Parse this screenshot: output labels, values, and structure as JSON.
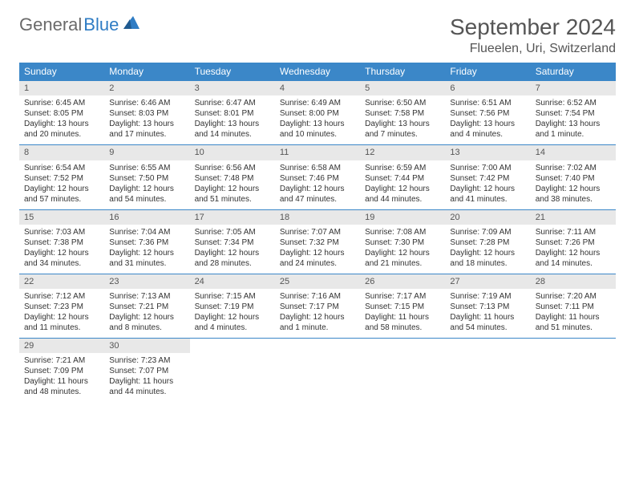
{
  "brand": {
    "part1": "General",
    "part2": "Blue"
  },
  "title": "September 2024",
  "location": "Flueelen, Uri, Switzerland",
  "colors": {
    "header_bg": "#3b87c8",
    "header_text": "#ffffff",
    "daynum_bg": "#e8e8e8",
    "border": "#3b87c8",
    "logo_gray": "#6a6a6a",
    "logo_blue": "#2f7cc4"
  },
  "day_names": [
    "Sunday",
    "Monday",
    "Tuesday",
    "Wednesday",
    "Thursday",
    "Friday",
    "Saturday"
  ],
  "weeks": [
    [
      {
        "n": "1",
        "sunrise": "Sunrise: 6:45 AM",
        "sunset": "Sunset: 8:05 PM",
        "daylight": "Daylight: 13 hours and 20 minutes."
      },
      {
        "n": "2",
        "sunrise": "Sunrise: 6:46 AM",
        "sunset": "Sunset: 8:03 PM",
        "daylight": "Daylight: 13 hours and 17 minutes."
      },
      {
        "n": "3",
        "sunrise": "Sunrise: 6:47 AM",
        "sunset": "Sunset: 8:01 PM",
        "daylight": "Daylight: 13 hours and 14 minutes."
      },
      {
        "n": "4",
        "sunrise": "Sunrise: 6:49 AM",
        "sunset": "Sunset: 8:00 PM",
        "daylight": "Daylight: 13 hours and 10 minutes."
      },
      {
        "n": "5",
        "sunrise": "Sunrise: 6:50 AM",
        "sunset": "Sunset: 7:58 PM",
        "daylight": "Daylight: 13 hours and 7 minutes."
      },
      {
        "n": "6",
        "sunrise": "Sunrise: 6:51 AM",
        "sunset": "Sunset: 7:56 PM",
        "daylight": "Daylight: 13 hours and 4 minutes."
      },
      {
        "n": "7",
        "sunrise": "Sunrise: 6:52 AM",
        "sunset": "Sunset: 7:54 PM",
        "daylight": "Daylight: 13 hours and 1 minute."
      }
    ],
    [
      {
        "n": "8",
        "sunrise": "Sunrise: 6:54 AM",
        "sunset": "Sunset: 7:52 PM",
        "daylight": "Daylight: 12 hours and 57 minutes."
      },
      {
        "n": "9",
        "sunrise": "Sunrise: 6:55 AM",
        "sunset": "Sunset: 7:50 PM",
        "daylight": "Daylight: 12 hours and 54 minutes."
      },
      {
        "n": "10",
        "sunrise": "Sunrise: 6:56 AM",
        "sunset": "Sunset: 7:48 PM",
        "daylight": "Daylight: 12 hours and 51 minutes."
      },
      {
        "n": "11",
        "sunrise": "Sunrise: 6:58 AM",
        "sunset": "Sunset: 7:46 PM",
        "daylight": "Daylight: 12 hours and 47 minutes."
      },
      {
        "n": "12",
        "sunrise": "Sunrise: 6:59 AM",
        "sunset": "Sunset: 7:44 PM",
        "daylight": "Daylight: 12 hours and 44 minutes."
      },
      {
        "n": "13",
        "sunrise": "Sunrise: 7:00 AM",
        "sunset": "Sunset: 7:42 PM",
        "daylight": "Daylight: 12 hours and 41 minutes."
      },
      {
        "n": "14",
        "sunrise": "Sunrise: 7:02 AM",
        "sunset": "Sunset: 7:40 PM",
        "daylight": "Daylight: 12 hours and 38 minutes."
      }
    ],
    [
      {
        "n": "15",
        "sunrise": "Sunrise: 7:03 AM",
        "sunset": "Sunset: 7:38 PM",
        "daylight": "Daylight: 12 hours and 34 minutes."
      },
      {
        "n": "16",
        "sunrise": "Sunrise: 7:04 AM",
        "sunset": "Sunset: 7:36 PM",
        "daylight": "Daylight: 12 hours and 31 minutes."
      },
      {
        "n": "17",
        "sunrise": "Sunrise: 7:05 AM",
        "sunset": "Sunset: 7:34 PM",
        "daylight": "Daylight: 12 hours and 28 minutes."
      },
      {
        "n": "18",
        "sunrise": "Sunrise: 7:07 AM",
        "sunset": "Sunset: 7:32 PM",
        "daylight": "Daylight: 12 hours and 24 minutes."
      },
      {
        "n": "19",
        "sunrise": "Sunrise: 7:08 AM",
        "sunset": "Sunset: 7:30 PM",
        "daylight": "Daylight: 12 hours and 21 minutes."
      },
      {
        "n": "20",
        "sunrise": "Sunrise: 7:09 AM",
        "sunset": "Sunset: 7:28 PM",
        "daylight": "Daylight: 12 hours and 18 minutes."
      },
      {
        "n": "21",
        "sunrise": "Sunrise: 7:11 AM",
        "sunset": "Sunset: 7:26 PM",
        "daylight": "Daylight: 12 hours and 14 minutes."
      }
    ],
    [
      {
        "n": "22",
        "sunrise": "Sunrise: 7:12 AM",
        "sunset": "Sunset: 7:23 PM",
        "daylight": "Daylight: 12 hours and 11 minutes."
      },
      {
        "n": "23",
        "sunrise": "Sunrise: 7:13 AM",
        "sunset": "Sunset: 7:21 PM",
        "daylight": "Daylight: 12 hours and 8 minutes."
      },
      {
        "n": "24",
        "sunrise": "Sunrise: 7:15 AM",
        "sunset": "Sunset: 7:19 PM",
        "daylight": "Daylight: 12 hours and 4 minutes."
      },
      {
        "n": "25",
        "sunrise": "Sunrise: 7:16 AM",
        "sunset": "Sunset: 7:17 PM",
        "daylight": "Daylight: 12 hours and 1 minute."
      },
      {
        "n": "26",
        "sunrise": "Sunrise: 7:17 AM",
        "sunset": "Sunset: 7:15 PM",
        "daylight": "Daylight: 11 hours and 58 minutes."
      },
      {
        "n": "27",
        "sunrise": "Sunrise: 7:19 AM",
        "sunset": "Sunset: 7:13 PM",
        "daylight": "Daylight: 11 hours and 54 minutes."
      },
      {
        "n": "28",
        "sunrise": "Sunrise: 7:20 AM",
        "sunset": "Sunset: 7:11 PM",
        "daylight": "Daylight: 11 hours and 51 minutes."
      }
    ],
    [
      {
        "n": "29",
        "sunrise": "Sunrise: 7:21 AM",
        "sunset": "Sunset: 7:09 PM",
        "daylight": "Daylight: 11 hours and 48 minutes."
      },
      {
        "n": "30",
        "sunrise": "Sunrise: 7:23 AM",
        "sunset": "Sunset: 7:07 PM",
        "daylight": "Daylight: 11 hours and 44 minutes."
      },
      {
        "empty": true
      },
      {
        "empty": true
      },
      {
        "empty": true
      },
      {
        "empty": true
      },
      {
        "empty": true
      }
    ]
  ]
}
